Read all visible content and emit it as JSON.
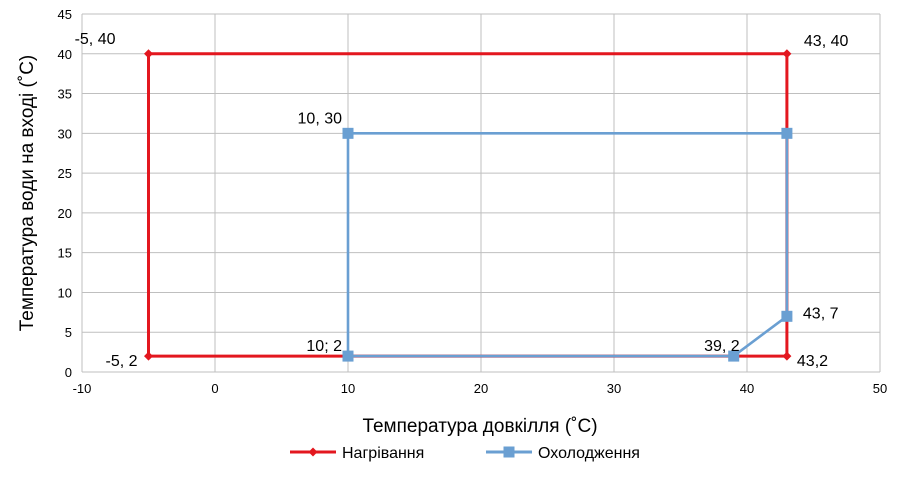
{
  "chart_data": {
    "type": "line",
    "title": "",
    "xlabel": "Температура довкілля (˚С)",
    "ylabel": "Температура води на вході (˚С)",
    "xlim": [
      -10,
      50
    ],
    "ylim": [
      0,
      45
    ],
    "xticks": [
      -10,
      0,
      10,
      20,
      30,
      40,
      50
    ],
    "yticks": [
      0,
      5,
      10,
      15,
      20,
      25,
      30,
      35,
      40,
      45
    ],
    "grid": true,
    "legend": "bottom",
    "series": [
      {
        "name": "Нагрівання",
        "color": "#e3171f",
        "marker": "diamond",
        "points": [
          [
            -5,
            2
          ],
          [
            -5,
            40
          ],
          [
            43,
            40
          ],
          [
            43,
            2
          ],
          [
            -5,
            2
          ]
        ]
      },
      {
        "name": "Охолодження",
        "color": "#6a9fd2",
        "marker": "square",
        "points": [
          [
            10,
            2
          ],
          [
            10,
            30
          ],
          [
            43,
            30
          ],
          [
            43,
            7
          ],
          [
            39,
            2
          ],
          [
            10,
            2
          ]
        ]
      }
    ],
    "annotations": [
      {
        "text": "-5, 40",
        "x": -5,
        "y": 40
      },
      {
        "text": "43, 40",
        "x": 43,
        "y": 40
      },
      {
        "text": "-5, 2",
        "x": -5,
        "y": 2
      },
      {
        "text": "43,2",
        "x": 43,
        "y": 2
      },
      {
        "text": "10, 30",
        "x": 10,
        "y": 30
      },
      {
        "text": "10; 2",
        "x": 10,
        "y": 2
      },
      {
        "text": "39, 2",
        "x": 39,
        "y": 2
      },
      {
        "text": "43, 7",
        "x": 43,
        "y": 7
      }
    ]
  }
}
